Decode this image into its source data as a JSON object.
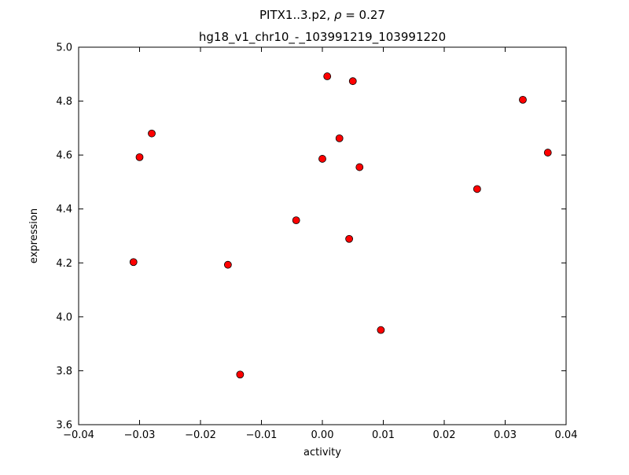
{
  "title": {
    "line1_text": "PITX1..3.p2, ",
    "line1_rho": "ρ",
    "line1_eq": " = 0.27",
    "line2": "hg18_v1_chr10_-_103991219_103991220"
  },
  "chart_data": {
    "type": "scatter",
    "title": "PITX1..3.p2, ρ = 0.27",
    "subtitle": "hg18_v1_chr10_-_103991219_103991220",
    "xlabel": "activity",
    "ylabel": "expression",
    "xlim": [
      -0.04,
      0.04
    ],
    "ylim": [
      3.6,
      5.0
    ],
    "grid": false,
    "legend": "none",
    "marker": {
      "shape": "circle",
      "fill_color": "#ff0000",
      "edge_color": "#000000",
      "radius_px": 4.5
    },
    "xticks": [
      -0.04,
      -0.03,
      -0.02,
      -0.01,
      0.0,
      0.01,
      0.02,
      0.03,
      0.04
    ],
    "xtick_labels": [
      "−0.04",
      "−0.03",
      "−0.02",
      "−0.01",
      "0.00",
      "0.01",
      "0.02",
      "0.03",
      "0.04"
    ],
    "yticks": [
      3.6,
      3.8,
      4.0,
      4.2,
      4.4,
      4.6,
      4.8,
      5.0
    ],
    "ytick_labels": [
      "3.6",
      "3.8",
      "4.0",
      "4.2",
      "4.4",
      "4.6",
      "4.8",
      "5.0"
    ],
    "x": [
      -0.031,
      -0.03,
      -0.028,
      -0.0155,
      -0.0135,
      -0.0043,
      0.0,
      0.0008,
      0.0028,
      0.0044,
      0.005,
      0.0061,
      0.0096,
      0.0254,
      0.0329,
      0.037
    ],
    "y": [
      4.203,
      4.592,
      4.68,
      4.193,
      3.786,
      4.358,
      4.586,
      4.892,
      4.662,
      4.289,
      4.874,
      4.555,
      3.951,
      4.474,
      4.805,
      4.609
    ]
  }
}
